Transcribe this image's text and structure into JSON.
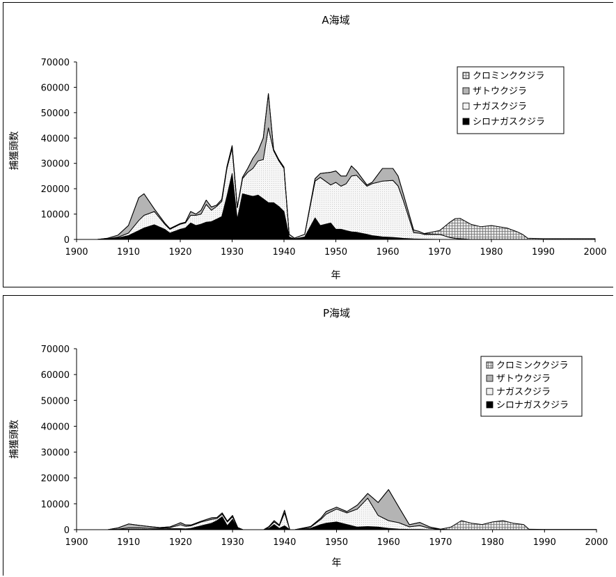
{
  "chart_data": [
    {
      "type": "area",
      "stacked": true,
      "title": "A海域",
      "xlabel": "年",
      "ylabel": "捕獲頭数",
      "xlim": [
        1900,
        2000
      ],
      "ylim": [
        0,
        70000
      ],
      "xticks": [
        "1900",
        "1910",
        "1920",
        "1930",
        "1940",
        "1950",
        "1960",
        "1970",
        "1980",
        "1990",
        "2000"
      ],
      "yticks": [
        "0",
        "10000",
        "20000",
        "30000",
        "40000",
        "50000",
        "60000",
        "70000"
      ],
      "grid": false,
      "legend_position": "top-right",
      "colors": {
        "クロミンククジラ": "#c8c8c8",
        "ザトウクジラ": "#b4b4b4",
        "ナガスクジラ": "#f2f2f2",
        "シロナガスクジラ": "#000000"
      },
      "x": [
        1904,
        1906,
        1908,
        1910,
        1912,
        1913,
        1915,
        1917,
        1918,
        1920,
        1921,
        1922,
        1923,
        1924,
        1925,
        1926,
        1927,
        1928,
        1929,
        1930,
        1931,
        1932,
        1933,
        1934,
        1935,
        1936,
        1937,
        1938,
        1939,
        1940,
        1941,
        1942,
        1944,
        1946,
        1947,
        1949,
        1950,
        1951,
        1952,
        1953,
        1954,
        1956,
        1957,
        1959,
        1961,
        1962,
        1963,
        1965,
        1966,
        1967,
        1970,
        1972,
        1973,
        1974,
        1976,
        1978,
        1980,
        1983,
        1985,
        1986,
        1987,
        1990,
        2000
      ],
      "series": [
        {
          "name": "シロナガスクジラ",
          "values": [
            0,
            200,
            600,
            1500,
            3500,
            4500,
            5800,
            4000,
            2500,
            4000,
            4500,
            6500,
            5500,
            6000,
            6800,
            7000,
            8000,
            9000,
            17000,
            26000,
            8000,
            18000,
            17500,
            17000,
            17500,
            16000,
            14500,
            14500,
            13000,
            11000,
            1000,
            200,
            1000,
            8500,
            5500,
            6500,
            4000,
            4000,
            3500,
            3000,
            2800,
            2000,
            1500,
            1000,
            800,
            600,
            400,
            200,
            150,
            100,
            0,
            0,
            0,
            0,
            0,
            0,
            0,
            0,
            0,
            0,
            0,
            0,
            0
          ]
        },
        {
          "name": "ナガスクジラ",
          "values": [
            0,
            100,
            300,
            1000,
            4000,
            5000,
            5200,
            2000,
            1500,
            2000,
            2000,
            3000,
            4000,
            4000,
            7000,
            4500,
            5000,
            6000,
            11000,
            10000,
            4500,
            6000,
            9000,
            11000,
            13500,
            15500,
            29500,
            20500,
            18000,
            17000,
            1000,
            300,
            1000,
            14500,
            19000,
            15000,
            18500,
            17000,
            18500,
            22000,
            22500,
            19000,
            20500,
            22000,
            22500,
            20500,
            15000,
            2500,
            2350,
            1900,
            2000,
            800,
            400,
            300,
            0,
            0,
            0,
            0,
            0,
            0,
            0,
            0,
            0
          ]
        },
        {
          "name": "ザトウクジラ",
          "values": [
            0,
            200,
            800,
            3000,
            9000,
            8500,
            1000,
            500,
            300,
            300,
            300,
            1500,
            500,
            1500,
            1700,
            1300,
            500,
            800,
            700,
            1000,
            200,
            500,
            1500,
            4000,
            4000,
            8500,
            13500,
            500,
            500,
            500,
            0,
            0,
            0,
            1000,
            1500,
            5000,
            4500,
            4000,
            3000,
            4000,
            1700,
            500,
            500,
            5000,
            4700,
            3900,
            2600,
            1000,
            700,
            300,
            0,
            0,
            0,
            0,
            0,
            0,
            0,
            0,
            0,
            0,
            0,
            0,
            0
          ]
        },
        {
          "name": "クロミンククジラ",
          "values": [
            0,
            0,
            0,
            0,
            0,
            0,
            0,
            0,
            0,
            0,
            0,
            0,
            0,
            0,
            0,
            0,
            0,
            0,
            0,
            0,
            0,
            0,
            0,
            0,
            0,
            0,
            0,
            0,
            0,
            0,
            0,
            0,
            0,
            0,
            0,
            0,
            0,
            0,
            0,
            0,
            0,
            0,
            0,
            0,
            0,
            0,
            0,
            0,
            0,
            0,
            1500,
            6000,
            7800,
            8000,
            6000,
            5000,
            5500,
            4500,
            3000,
            2000,
            500,
            300,
            300
          ]
        }
      ]
    },
    {
      "type": "area",
      "stacked": true,
      "title": "P海域",
      "xlabel": "年",
      "ylabel": "捕獲頭数",
      "xlim": [
        1900,
        2000
      ],
      "ylim": [
        0,
        70000
      ],
      "xticks": [
        "1900",
        "1910",
        "1920",
        "1930",
        "1940",
        "1950",
        "1960",
        "1970",
        "1980",
        "1990",
        "2000"
      ],
      "yticks": [
        "0",
        "10000",
        "20000",
        "30000",
        "40000",
        "50000",
        "60000",
        "70000"
      ],
      "grid": false,
      "legend_position": "top-right",
      "colors": {
        "クロミンククジラ": "#c8c8c8",
        "ザトウクジラ": "#b4b4b4",
        "ナガスクジラ": "#f2f2f2",
        "シロナガスクジラ": "#000000"
      },
      "x": [
        1906,
        1908,
        1910,
        1912,
        1914,
        1916,
        1918,
        1920,
        1921,
        1922,
        1924,
        1926,
        1927,
        1928,
        1929,
        1930,
        1931,
        1932,
        1936,
        1937,
        1938,
        1939,
        1940,
        1941,
        1942,
        1945,
        1947,
        1948,
        1950,
        1952,
        1954,
        1956,
        1958,
        1960,
        1962,
        1964,
        1966,
        1968,
        1970,
        1972,
        1974,
        1976,
        1978,
        1980,
        1982,
        1984,
        1986,
        1987,
        1990,
        2000
      ],
      "series": [
        {
          "name": "シロナガスクジラ",
          "values": [
            0,
            100,
            200,
            200,
            100,
            200,
            400,
            400,
            300,
            500,
            1500,
            2500,
            3500,
            5000,
            1500,
            4000,
            200,
            0,
            0,
            500,
            2000,
            500,
            1500,
            0,
            0,
            500,
            2000,
            2500,
            3000,
            2000,
            1000,
            1200,
            1000,
            500,
            200,
            100,
            100,
            0,
            0,
            0,
            0,
            0,
            0,
            0,
            0,
            0,
            0,
            0,
            0,
            0
          ]
        },
        {
          "name": "ナガスクジラ",
          "values": [
            0,
            100,
            500,
            500,
            400,
            300,
            400,
            1500,
            1000,
            1000,
            1500,
            1500,
            800,
            1000,
            1500,
            1000,
            300,
            0,
            0,
            500,
            1000,
            1000,
            5000,
            0,
            0,
            500,
            2000,
            3500,
            5000,
            4500,
            7000,
            11000,
            4500,
            3000,
            2500,
            1000,
            1500,
            500,
            100,
            0,
            0,
            0,
            0,
            0,
            0,
            0,
            0,
            0,
            0,
            0
          ]
        },
        {
          "name": "ザトウクジラ",
          "values": [
            0,
            500,
            1500,
            1000,
            700,
            300,
            300,
            800,
            500,
            300,
            300,
            600,
            400,
            500,
            300,
            500,
            300,
            0,
            0,
            200,
            500,
            300,
            1000,
            0,
            0,
            200,
            500,
            1000,
            700,
            500,
            1500,
            1800,
            5000,
            12000,
            6000,
            800,
            1200,
            500,
            100,
            0,
            0,
            0,
            0,
            0,
            0,
            0,
            0,
            0,
            0,
            0
          ]
        },
        {
          "name": "クロミンククジラ",
          "values": [
            0,
            0,
            0,
            0,
            0,
            0,
            0,
            0,
            0,
            0,
            0,
            0,
            0,
            0,
            0,
            0,
            0,
            0,
            0,
            0,
            0,
            0,
            0,
            0,
            0,
            0,
            0,
            0,
            0,
            0,
            0,
            0,
            0,
            0,
            0,
            0,
            0,
            0,
            0,
            1000,
            3500,
            2500,
            2000,
            3000,
            3500,
            2500,
            2000,
            200,
            100,
            100
          ]
        }
      ]
    }
  ]
}
